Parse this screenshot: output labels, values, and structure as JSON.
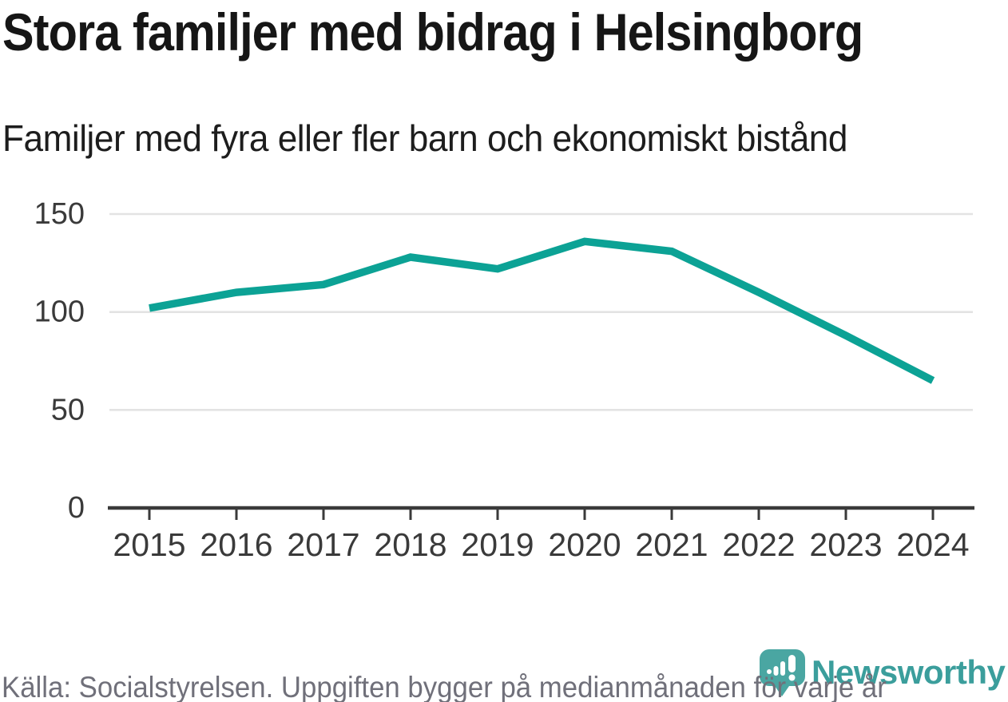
{
  "header": {
    "title": "Stora familjer med bidrag i Helsingborg",
    "subtitle": "Familjer med fyra eller fler barn och ekonomiskt bistånd"
  },
  "chart_data": {
    "type": "line",
    "title": "Stora familjer med bidrag i Helsingborg",
    "subtitle": "Familjer med fyra eller fler barn och ekonomiskt bistånd",
    "x": [
      "2015",
      "2016",
      "2017",
      "2018",
      "2019",
      "2020",
      "2021",
      "2022",
      "2023",
      "2024"
    ],
    "series": [
      {
        "name": "Familjer med fyra eller fler barn och ekonomiskt bistånd",
        "values": [
          102,
          110,
          114,
          128,
          122,
          136,
          131,
          110,
          88,
          65
        ]
      }
    ],
    "xlabel": "",
    "ylabel": "",
    "ylim": [
      0,
      150
    ],
    "yticks": [
      0,
      50,
      100,
      150
    ],
    "grid": "horizontal",
    "legend_position": "none",
    "colors": {
      "line": "#0ca295",
      "gridline": "#e3e3e3",
      "axis": "#3a3a3a",
      "tick_label": "#3a3a3a"
    }
  },
  "footer": {
    "source": "Källa: Socialstyrelsen. Uppgiften bygger på medianmånaden för varje år",
    "brand": "Newsworthy",
    "brand_color": "#3b9e9c",
    "logo_color": "#4aa6a2"
  }
}
